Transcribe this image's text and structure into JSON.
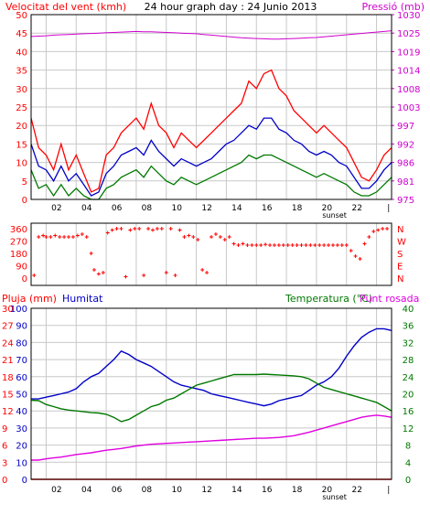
{
  "colors": {
    "background": "#ffffff",
    "plot_bg": "#ffffff",
    "grid": "#c8c8c8",
    "frame": "#000000",
    "title": "#000000",
    "wind_speed": "#ff0000",
    "wind_avg": "#0000c8",
    "wind_min": "#007800",
    "pressure": "#d000d0",
    "direction": "#ff0000",
    "rain": "#ff0000",
    "humidity": "#0000c8",
    "temperature": "#007800",
    "dewpoint": "#e000e0"
  },
  "x_axis": {
    "hour_ticks": [
      "02",
      "04",
      "06",
      "08",
      "10",
      "12",
      "14",
      "16",
      "18",
      "20",
      "22",
      "|"
    ],
    "sunset_label": "sunset"
  },
  "chart_data": [
    {
      "type": "line",
      "id": "wind_pressure",
      "title": "24 hour graph day : 24 Junio 2013",
      "ylabel_left": "Velocitat del vent (kmh)",
      "ylabel_right": "Pressió (mb)",
      "y_left_ticks": [
        "0",
        "5",
        "10",
        "15",
        "20",
        "25",
        "30",
        "35",
        "40",
        "45",
        "50"
      ],
      "y_right_ticks": [
        "975",
        "981",
        "986",
        "992",
        "997",
        "1003",
        "1008",
        "1014",
        "1019",
        "1025",
        "1030"
      ],
      "ylim_left": [
        0,
        50
      ],
      "ylim_right": [
        975,
        1030
      ],
      "x_hours": [
        0,
        0.5,
        1,
        1.5,
        2,
        2.5,
        3,
        3.5,
        4,
        4.5,
        5,
        5.5,
        6,
        6.5,
        7,
        7.5,
        8,
        8.5,
        9,
        9.5,
        10,
        10.5,
        11,
        11.5,
        12,
        12.5,
        13,
        13.5,
        14,
        14.5,
        15,
        15.5,
        16,
        16.5,
        17,
        17.5,
        18,
        18.5,
        19,
        19.5,
        20,
        20.5,
        21,
        21.5,
        22,
        22.5,
        23,
        23.5,
        24
      ],
      "series": [
        {
          "key": "wind_speed",
          "values": [
            22,
            14,
            12,
            8,
            15,
            8,
            12,
            7,
            2,
            3,
            12,
            14,
            18,
            20,
            22,
            19,
            26,
            20,
            18,
            14,
            18,
            16,
            14,
            16,
            18,
            20,
            22,
            24,
            26,
            32,
            30,
            34,
            35,
            30,
            28,
            24,
            22,
            20,
            18,
            20,
            18,
            16,
            14,
            10,
            6,
            5,
            8,
            12,
            14
          ]
        },
        {
          "key": "wind_avg",
          "values": [
            15,
            9,
            8,
            5,
            9,
            5,
            7,
            4,
            1,
            2,
            7,
            9,
            12,
            13,
            14,
            12,
            16,
            13,
            11,
            9,
            11,
            10,
            9,
            10,
            11,
            13,
            15,
            16,
            18,
            20,
            19,
            22,
            22,
            19,
            18,
            16,
            15,
            13,
            12,
            13,
            12,
            10,
            9,
            6,
            3,
            3,
            5,
            8,
            10
          ]
        },
        {
          "key": "wind_min",
          "values": [
            8,
            3,
            4,
            1,
            4,
            1,
            3,
            1,
            0,
            0,
            3,
            4,
            6,
            7,
            8,
            6,
            9,
            7,
            5,
            4,
            6,
            5,
            4,
            5,
            6,
            7,
            8,
            9,
            10,
            12,
            11,
            12,
            12,
            11,
            10,
            9,
            8,
            7,
            6,
            7,
            6,
            5,
            4,
            2,
            1,
            1,
            2,
            4,
            6
          ]
        },
        {
          "key": "pressure",
          "axis": "right",
          "values": [
            1023.5,
            1023.6,
            1023.7,
            1023.9,
            1024.0,
            1024.1,
            1024.2,
            1024.3,
            1024.4,
            1024.5,
            1024.6,
            1024.7,
            1024.8,
            1024.9,
            1025.0,
            1024.9,
            1024.9,
            1024.8,
            1024.7,
            1024.6,
            1024.5,
            1024.4,
            1024.3,
            1024.1,
            1023.9,
            1023.7,
            1023.5,
            1023.3,
            1023.1,
            1023.0,
            1022.9,
            1022.8,
            1022.7,
            1022.7,
            1022.8,
            1022.9,
            1023.0,
            1023.1,
            1023.2,
            1023.4,
            1023.6,
            1023.8,
            1024.0,
            1024.2,
            1024.4,
            1024.6,
            1024.8,
            1025.0,
            1025.2
          ]
        }
      ]
    },
    {
      "type": "scatter",
      "id": "wind_direction",
      "y_left_ticks": [
        "0",
        "90",
        "180",
        "270",
        "360"
      ],
      "y_right_ticks": [
        "N",
        "E",
        "S",
        "W",
        "N"
      ],
      "ylim": [
        0,
        360
      ],
      "points_hours": [
        0.2,
        0.5,
        0.8,
        1.0,
        1.3,
        1.6,
        1.9,
        2.2,
        2.5,
        2.8,
        3.1,
        3.4,
        3.7,
        4.0,
        4.2,
        4.5,
        4.8,
        5.1,
        5.4,
        5.7,
        6.0,
        6.3,
        6.6,
        6.9,
        7.2,
        7.5,
        7.8,
        8.1,
        8.4,
        8.7,
        9.0,
        9.3,
        9.6,
        9.9,
        10.2,
        10.5,
        10.8,
        11.1,
        11.4,
        11.7,
        12.0,
        12.3,
        12.6,
        12.9,
        13.2,
        13.5,
        13.8,
        14.1,
        14.4,
        14.7,
        15.0,
        15.3,
        15.6,
        15.9,
        16.2,
        16.5,
        16.8,
        17.1,
        17.4,
        17.7,
        18.0,
        18.3,
        18.6,
        18.9,
        19.2,
        19.5,
        19.8,
        20.1,
        20.4,
        20.7,
        21.0,
        21.3,
        21.6,
        21.9,
        22.2,
        22.5,
        22.8,
        23.1,
        23.4,
        23.7
      ],
      "points_deg": [
        20,
        300,
        310,
        300,
        300,
        310,
        300,
        300,
        300,
        300,
        310,
        320,
        300,
        180,
        60,
        30,
        40,
        330,
        350,
        360,
        360,
        10,
        350,
        360,
        360,
        20,
        360,
        350,
        360,
        360,
        40,
        360,
        20,
        350,
        300,
        310,
        300,
        280,
        60,
        40,
        300,
        320,
        300,
        280,
        300,
        250,
        240,
        250,
        240,
        240,
        240,
        240,
        245,
        240,
        240,
        240,
        240,
        240,
        240,
        240,
        240,
        240,
        240,
        240,
        240,
        240,
        240,
        240,
        240,
        240,
        240,
        200,
        160,
        140,
        250,
        300,
        340,
        350,
        360,
        360
      ]
    },
    {
      "type": "line",
      "id": "rain_humidity_temperature",
      "ylabel_left_a": "Pluja (mm)",
      "ylabel_left_b": "Humitat",
      "ylabel_right_a": "Temperatura (°C)",
      "ylabel_right_b": "Punt rosada",
      "y_left_outer_ticks": [
        "0",
        "10",
        "20",
        "30",
        "40",
        "50",
        "60",
        "70",
        "80",
        "90",
        "100"
      ],
      "y_left_inner_ticks": [
        "0",
        "3",
        "6",
        "9",
        "12",
        "15",
        "18",
        "21",
        "24",
        "27",
        "30"
      ],
      "y_right_ticks": [
        "0",
        "4",
        "8",
        "12",
        "16",
        "20",
        "24",
        "28",
        "32",
        "36",
        "40"
      ],
      "ylim_left_humidity": [
        0,
        100
      ],
      "ylim_right_temp": [
        0,
        40
      ],
      "x_hours": [
        0,
        0.5,
        1,
        1.5,
        2,
        2.5,
        3,
        3.5,
        4,
        4.5,
        5,
        5.5,
        6,
        6.5,
        7,
        7.5,
        8,
        8.5,
        9,
        9.5,
        10,
        10.5,
        11,
        11.5,
        12,
        12.5,
        13,
        13.5,
        14,
        14.5,
        15,
        15.5,
        16,
        16.5,
        17,
        17.5,
        18,
        18.5,
        19,
        19.5,
        20,
        20.5,
        21,
        21.5,
        22,
        22.5,
        23,
        23.5,
        24
      ],
      "series": [
        {
          "key": "humidity",
          "values": [
            47,
            47,
            48,
            49,
            50,
            51,
            53,
            57,
            60,
            62,
            66,
            70,
            75,
            73,
            70,
            68,
            66,
            63,
            60,
            57,
            55,
            54,
            53,
            52,
            50,
            49,
            48,
            47,
            46,
            45,
            44,
            43,
            44,
            46,
            47,
            48,
            49,
            52,
            55,
            57,
            60,
            65,
            72,
            78,
            83,
            86,
            88,
            88,
            87
          ]
        },
        {
          "key": "temperature",
          "values": [
            18.5,
            18.4,
            17.5,
            17.0,
            16.5,
            16.2,
            16.0,
            15.8,
            15.6,
            15.5,
            15.2,
            14.5,
            13.5,
            14.0,
            15.0,
            16.0,
            17.0,
            17.5,
            18.5,
            19.0,
            20.0,
            21.0,
            22.0,
            22.5,
            23.0,
            23.5,
            24.0,
            24.5,
            24.5,
            24.5,
            24.5,
            24.6,
            24.5,
            24.4,
            24.3,
            24.2,
            24.0,
            23.5,
            22.5,
            21.5,
            21.0,
            20.5,
            20.0,
            19.5,
            19.0,
            18.5,
            18.0,
            17.0,
            16.0
          ]
        },
        {
          "key": "dewpoint",
          "values": [
            4.5,
            4.5,
            4.8,
            5.0,
            5.2,
            5.5,
            5.8,
            6.0,
            6.2,
            6.5,
            6.8,
            7.0,
            7.2,
            7.5,
            7.8,
            8.0,
            8.2,
            8.3,
            8.4,
            8.5,
            8.6,
            8.7,
            8.8,
            8.9,
            9.0,
            9.1,
            9.2,
            9.3,
            9.4,
            9.5,
            9.6,
            9.6,
            9.7,
            9.8,
            10.0,
            10.2,
            10.6,
            11.0,
            11.5,
            12.0,
            12.5,
            13.0,
            13.5,
            14.0,
            14.5,
            14.8,
            15.0,
            14.8,
            14.5
          ]
        },
        {
          "key": "rain",
          "values": [
            0,
            0,
            0,
            0,
            0,
            0,
            0,
            0,
            0,
            0,
            0,
            0,
            0,
            0,
            0,
            0,
            0,
            0,
            0,
            0,
            0,
            0,
            0,
            0,
            0,
            0,
            0,
            0,
            0,
            0,
            0,
            0,
            0,
            0,
            0,
            0,
            0,
            0,
            0,
            0,
            0,
            0,
            0,
            0,
            0,
            0,
            0,
            0,
            0
          ]
        }
      ]
    }
  ]
}
